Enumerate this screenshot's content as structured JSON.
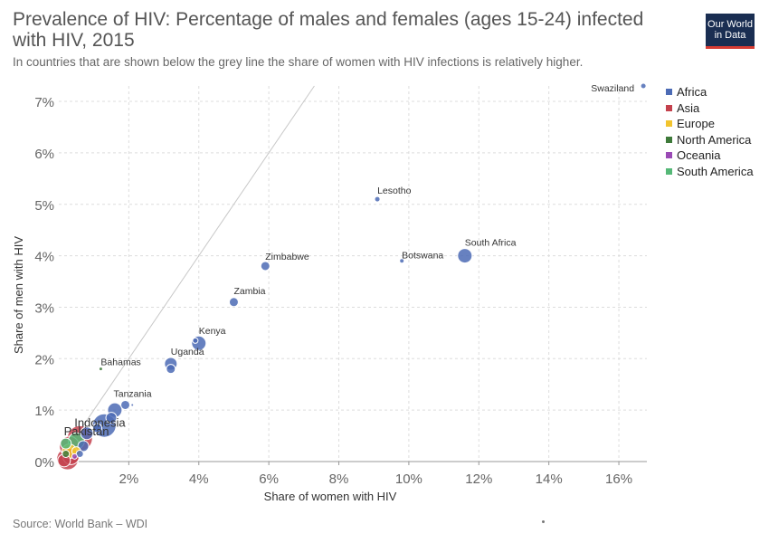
{
  "header": {
    "title": "Prevalence of HIV: Percentage of males and females (ages 15-24) infected with HIV, 2015",
    "subtitle": "In countries that are shown below the grey line the share of women with HIV infections is relatively higher.",
    "logo_line1": "Our World",
    "logo_line2": "in Data"
  },
  "footer": {
    "source": "Source: World Bank – WDI"
  },
  "legend": {
    "items": [
      {
        "label": "Africa",
        "color": "#4c6bb5"
      },
      {
        "label": "Asia",
        "color": "#c4414d"
      },
      {
        "label": "Europe",
        "color": "#f2c42e"
      },
      {
        "label": "North America",
        "color": "#3e7a3a"
      },
      {
        "label": "Oceania",
        "color": "#9a4ab5"
      },
      {
        "label": "South America",
        "color": "#55b877"
      }
    ]
  },
  "chart_data": {
    "type": "scatter",
    "xlabel": "Share of women with HIV",
    "ylabel": "Share of men with HIV",
    "xlim": [
      0,
      16.8
    ],
    "ylim": [
      0,
      7.3
    ],
    "x_ticks": [
      2,
      4,
      6,
      8,
      10,
      12,
      14,
      16
    ],
    "y_ticks": [
      0,
      1,
      2,
      3,
      4,
      5,
      6,
      7
    ],
    "x_tick_suffix": "%",
    "y_tick_suffix": "%",
    "grid": true,
    "legend_position": "top-right",
    "reference_line": "equal share (x = y)",
    "points": [
      {
        "label": "Swaziland",
        "x": 16.7,
        "y": 7.3,
        "region": "Africa",
        "r": 3
      },
      {
        "label": "Lesotho",
        "x": 9.1,
        "y": 5.1,
        "region": "Africa",
        "r": 3
      },
      {
        "label": "South Africa",
        "x": 11.6,
        "y": 4.0,
        "region": "Africa",
        "r": 8
      },
      {
        "label": "Botswana",
        "x": 9.8,
        "y": 3.9,
        "region": "Africa",
        "r": 2.5
      },
      {
        "label": "Zimbabwe",
        "x": 5.9,
        "y": 3.8,
        "region": "Africa",
        "r": 5
      },
      {
        "label": "Zambia",
        "x": 5.0,
        "y": 3.1,
        "region": "Africa",
        "r": 5
      },
      {
        "label": "Kenya",
        "x": 4.0,
        "y": 2.3,
        "region": "Africa",
        "r": 8
      },
      {
        "label": "",
        "x": 3.9,
        "y": 2.35,
        "region": "Africa",
        "r": 3
      },
      {
        "label": "Uganda",
        "x": 3.2,
        "y": 1.9,
        "region": "Africa",
        "r": 7
      },
      {
        "label": "",
        "x": 3.2,
        "y": 1.8,
        "region": "Africa",
        "r": 5
      },
      {
        "label": "Bahamas",
        "x": 1.2,
        "y": 1.8,
        "region": "North America",
        "r": 2
      },
      {
        "label": "Tanzania",
        "x": 1.9,
        "y": 1.1,
        "region": "Africa",
        "r": 5
      },
      {
        "label": "",
        "x": 2.1,
        "y": 1.1,
        "region": "Africa",
        "r": 1.5
      },
      {
        "label": "",
        "x": 1.6,
        "y": 1.0,
        "region": "Africa",
        "r": 8
      },
      {
        "label": "",
        "x": 1.5,
        "y": 0.85,
        "region": "Africa",
        "r": 6
      },
      {
        "label": "",
        "x": 1.3,
        "y": 0.7,
        "region": "Africa",
        "r": 13
      },
      {
        "label": "",
        "x": 1.1,
        "y": 0.65,
        "region": "Africa",
        "r": 5
      },
      {
        "label": "Indonesia",
        "x": 0.6,
        "y": 0.45,
        "region": "Asia",
        "r": 14
      },
      {
        "label": "",
        "x": 0.8,
        "y": 0.55,
        "region": "Africa",
        "r": 7
      },
      {
        "label": "",
        "x": 0.5,
        "y": 0.4,
        "region": "South America",
        "r": 9
      },
      {
        "label": "Pakistan",
        "x": 0.3,
        "y": 0.3,
        "region": "Asia",
        "r": 11
      },
      {
        "label": "",
        "x": 0.7,
        "y": 0.3,
        "region": "Africa",
        "r": 6
      },
      {
        "label": "",
        "x": 0.2,
        "y": 0.35,
        "region": "South America",
        "r": 6
      },
      {
        "label": "",
        "x": 0.3,
        "y": 0.2,
        "region": "Europe",
        "r": 8
      },
      {
        "label": "",
        "x": 0.5,
        "y": 0.2,
        "region": "Europe",
        "r": 5
      },
      {
        "label": "",
        "x": 0.2,
        "y": 0.15,
        "region": "North America",
        "r": 4
      },
      {
        "label": "",
        "x": 0.25,
        "y": 0.05,
        "region": "Asia",
        "r": 12
      },
      {
        "label": "",
        "x": 0.35,
        "y": 0.1,
        "region": "Asia",
        "r": 9
      },
      {
        "label": "",
        "x": 0.15,
        "y": 0.02,
        "region": "Asia",
        "r": 7
      },
      {
        "label": "",
        "x": 0.45,
        "y": 0.1,
        "region": "Oceania",
        "r": 3
      },
      {
        "label": "",
        "x": 0.6,
        "y": 0.15,
        "region": "Africa",
        "r": 4
      }
    ]
  }
}
